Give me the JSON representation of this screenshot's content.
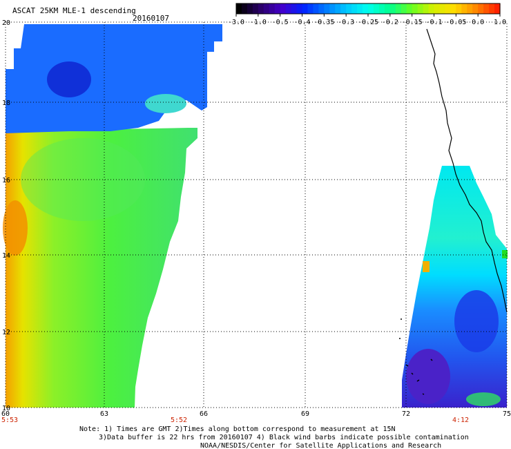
{
  "header": {
    "title": "ASCAT 25KM MLE-1 descending",
    "date": "20160107"
  },
  "colorbar": {
    "tick_labels": [
      "-3.0",
      "-1.0",
      "-0.5",
      "-0.4",
      "-0.35",
      "-0.3",
      "-0.25",
      "-0.2",
      "-0.15",
      "-0.1",
      "-0.05",
      "0.0",
      "1.0"
    ],
    "colors": [
      "#000000",
      "#2a0068",
      "#4400cc",
      "#0022ff",
      "#0077ff",
      "#00c8ff",
      "#00ffee",
      "#00ff90",
      "#66ff22",
      "#d2f000",
      "#ffdd00",
      "#ff8800",
      "#ff2200"
    ]
  },
  "map": {
    "lat_labels": [
      "20",
      "18",
      "16",
      "14",
      "12",
      "10"
    ],
    "lon_labels": [
      "60",
      "63",
      "66",
      "69",
      "72",
      "75"
    ],
    "time_labels": [
      "5:53",
      "5:52",
      "4:12"
    ]
  },
  "notes": {
    "line1": "Note: 1) Times are GMT 2)Times along bottom correspond to measurement at 15N",
    "line2": "3)Data buffer is 22 hrs from 20160107 4) Black wind barbs indicate possible contamination",
    "line3": "NOAA/NESDIS/Center for Satellite Applications and Research"
  },
  "colors": {
    "grid": "#000000",
    "axis_red": "#cc2200",
    "coast": "#000000"
  }
}
